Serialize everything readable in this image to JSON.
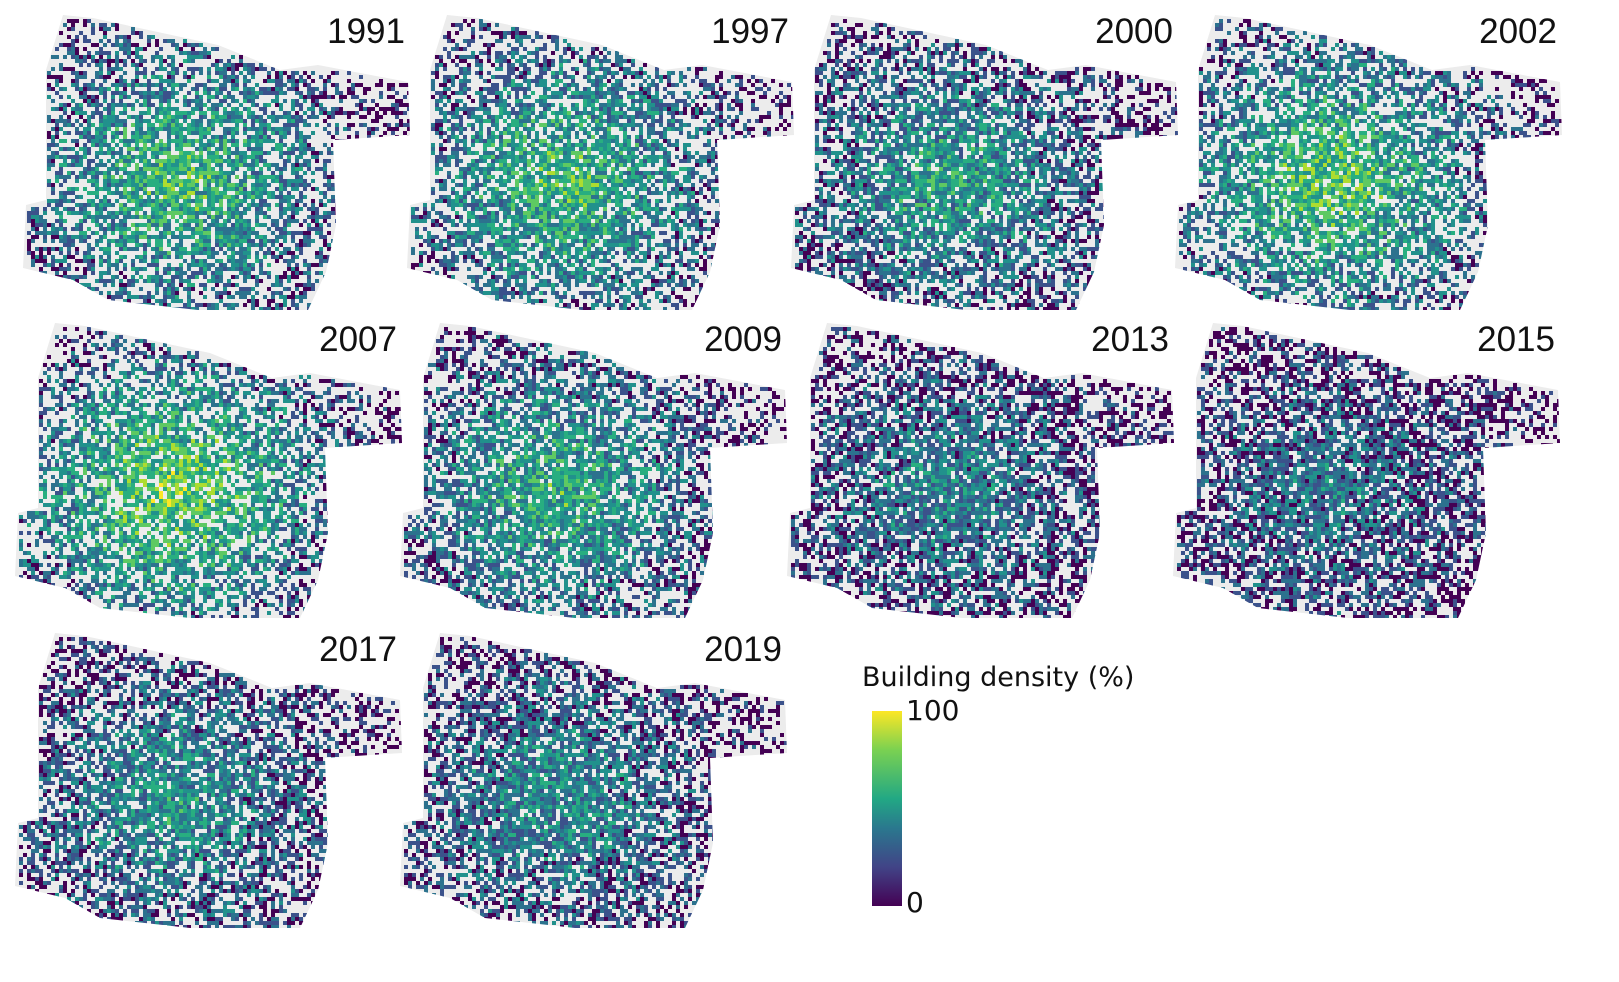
{
  "panels": [
    {
      "year": "1991",
      "intensity": 0.55
    },
    {
      "year": "1997",
      "intensity": 0.55
    },
    {
      "year": "2000",
      "intensity": 0.45
    },
    {
      "year": "2002",
      "intensity": 0.6
    },
    {
      "year": "2007",
      "intensity": 0.65
    },
    {
      "year": "2009",
      "intensity": 0.5
    },
    {
      "year": "2013",
      "intensity": 0.35
    },
    {
      "year": "2015",
      "intensity": 0.3
    },
    {
      "year": "2017",
      "intensity": 0.4
    },
    {
      "year": "2019",
      "intensity": 0.38
    }
  ],
  "legend": {
    "title": "Building density (%)",
    "max_label": "100",
    "min_label": "0",
    "colors": [
      "#440154",
      "#414487",
      "#2a788e",
      "#22a884",
      "#7ad151",
      "#fde725"
    ]
  },
  "colors": {
    "background_area": "#ececec",
    "colormap": "viridis"
  }
}
